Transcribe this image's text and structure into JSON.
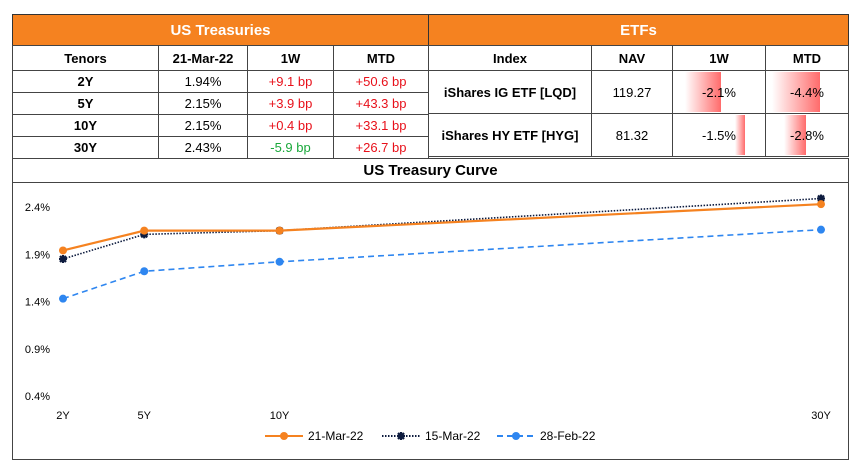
{
  "treasuries": {
    "title": "US Treasuries",
    "headers": [
      "Tenors",
      "21-Mar-22",
      "1W",
      "MTD"
    ],
    "rows": [
      {
        "tenor": "2Y",
        "yield": "1.94%",
        "w1": "+9.1 bp",
        "mtd": "+50.6 bp",
        "w1_color": "red",
        "mtd_color": "red"
      },
      {
        "tenor": "5Y",
        "yield": "2.15%",
        "w1": "+3.9 bp",
        "mtd": "+43.3 bp",
        "w1_color": "red",
        "mtd_color": "red"
      },
      {
        "tenor": "10Y",
        "yield": "2.15%",
        "w1": "+0.4 bp",
        "mtd": "+33.1 bp",
        "w1_color": "red",
        "mtd_color": "red"
      },
      {
        "tenor": "30Y",
        "yield": "2.43%",
        "w1": "-5.9 bp",
        "mtd": "+26.7 bp",
        "w1_color": "green",
        "mtd_color": "red"
      }
    ]
  },
  "etfs": {
    "title": "ETFs",
    "headers": [
      "Index",
      "NAV",
      "1W",
      "MTD"
    ],
    "rows": [
      {
        "index": "iShares IG ETF [LQD]",
        "nav": "119.27",
        "w1": "-2.1%",
        "mtd": "-4.4%",
        "w1_val": -2.1,
        "mtd_val": -4.4
      },
      {
        "index": "iShares HY ETF [HYG]",
        "nav": "81.32",
        "w1": "-1.5%",
        "mtd": "-2.8%",
        "w1_val": -1.5,
        "mtd_val": -2.8
      }
    ]
  },
  "chart_data": {
    "type": "line",
    "title": "US Treasury Curve",
    "x": [
      2,
      5,
      10,
      30
    ],
    "x_tick_labels": [
      "2Y",
      "5Y",
      "10Y",
      "30Y"
    ],
    "y_ticks": [
      0.4,
      0.9,
      1.4,
      1.9,
      2.4
    ],
    "y_tick_labels": [
      "0.4%",
      "0.9%",
      "1.4%",
      "1.9%",
      "2.4%"
    ],
    "ylim": [
      0.4,
      2.55
    ],
    "xlim": [
      2,
      30
    ],
    "legend": "bottom",
    "series": [
      {
        "name": "21-Mar-22",
        "values": [
          1.94,
          2.15,
          2.15,
          2.43
        ],
        "color": "#f58220",
        "style": "solid"
      },
      {
        "name": "15-Mar-22",
        "values": [
          1.85,
          2.11,
          2.15,
          2.49
        ],
        "color": "#0d1b3e",
        "style": "dotted"
      },
      {
        "name": "28-Feb-22",
        "values": [
          1.43,
          1.72,
          1.82,
          2.16
        ],
        "color": "#2e86f0",
        "style": "dashed"
      }
    ]
  }
}
